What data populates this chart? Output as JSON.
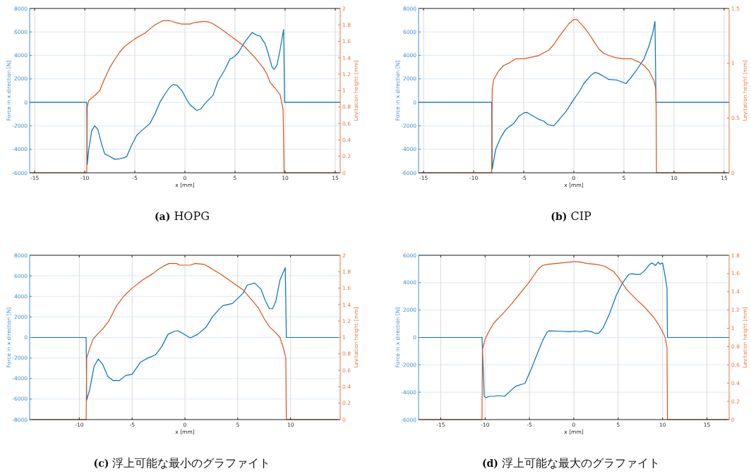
{
  "chart_data": [
    {
      "type": "line",
      "title": "(a) HOPG",
      "xlabel": "x [mm]",
      "ylabel": "Force in x direction [N]",
      "y2label": "Levitation height [mm]",
      "xlim": [
        -15.5,
        15.5
      ],
      "xticks": [
        -15,
        -10,
        -5,
        0,
        5,
        10,
        15
      ],
      "ylim": [
        -6000,
        8000
      ],
      "yticks": [
        -6000,
        -4000,
        -2000,
        0,
        2000,
        4000,
        6000,
        8000
      ],
      "y2lim": [
        0,
        2
      ],
      "y2ticks": [
        0,
        0.2,
        0.4,
        0.6,
        0.8,
        1,
        1.2,
        1.4,
        1.6,
        1.8,
        2
      ],
      "grid": true,
      "series": [
        {
          "color": "#0072bd",
          "x": [
            -15.5,
            -9.8,
            -9.75,
            -9.6,
            -9.3,
            -9.0,
            -8.7,
            -8.3,
            -8.0,
            -7.5,
            -7.0,
            -6.5,
            -6.0,
            -5.8,
            -5.3,
            -4.8,
            -4.3,
            -3.5,
            -3.0,
            -2.5,
            -2.0,
            -1.5,
            -1.2,
            -0.8,
            -0.3,
            0.2,
            0.5,
            1.2,
            1.6,
            2.0,
            2.8,
            3.3,
            4.0,
            4.5,
            4.8,
            5.3,
            5.8,
            6.2,
            6.7,
            7.2,
            7.5,
            8.0,
            8.3,
            8.7,
            8.9,
            9.2,
            9.5,
            9.85,
            9.95,
            15.5
          ],
          "values": [
            0,
            0,
            -5300,
            -4000,
            -2400,
            -2000,
            -2300,
            -3600,
            -4400,
            -4600,
            -4850,
            -4800,
            -4700,
            -4600,
            -3600,
            -2800,
            -2400,
            -1800,
            -1000,
            0,
            700,
            1300,
            1520,
            1450,
            1000,
            200,
            -200,
            -700,
            -550,
            -100,
            600,
            1800,
            2800,
            3700,
            3800,
            4200,
            4900,
            5400,
            5950,
            5700,
            5650,
            5000,
            4200,
            3000,
            2800,
            3200,
            4500,
            6200,
            0,
            0
          ]
        },
        {
          "color": "#d95319",
          "axis": "y2",
          "x": [
            -15.5,
            -9.8,
            -9.75,
            -9.6,
            -9.0,
            -8.5,
            -8.0,
            -7.5,
            -7.0,
            -6.5,
            -6.0,
            -5.0,
            -4.0,
            -3.5,
            -3.0,
            -2.2,
            -1.5,
            -1.0,
            -0.3,
            0.5,
            1.0,
            1.7,
            2.2,
            2.7,
            3.5,
            4.5,
            5.5,
            6.0,
            7.0,
            7.8,
            8.2,
            8.5,
            9.0,
            9.5,
            9.8,
            9.9,
            15.5
          ],
          "values": [
            0,
            0,
            0.8,
            0.88,
            0.94,
            1.0,
            1.15,
            1.28,
            1.38,
            1.47,
            1.54,
            1.63,
            1.7,
            1.75,
            1.8,
            1.85,
            1.85,
            1.83,
            1.81,
            1.81,
            1.83,
            1.84,
            1.84,
            1.82,
            1.76,
            1.67,
            1.58,
            1.53,
            1.4,
            1.28,
            1.2,
            1.1,
            1.03,
            0.95,
            0.77,
            0,
            0
          ]
        }
      ]
    },
    {
      "type": "line",
      "title": "(b) CIP",
      "xlabel": "x [mm]",
      "ylabel": "Force in x direction [N]",
      "y2label": "Levitation height [mm]",
      "xlim": [
        -15.5,
        15.5
      ],
      "xticks": [
        -15,
        -10,
        -5,
        0,
        5,
        10,
        15
      ],
      "ylim": [
        -6000,
        8000
      ],
      "yticks": [
        -6000,
        -4000,
        -2000,
        0,
        2000,
        4000,
        6000,
        8000
      ],
      "y2lim": [
        0,
        1.5
      ],
      "y2ticks": [
        0,
        0.5,
        1,
        1.5
      ],
      "grid": true,
      "series": [
        {
          "color": "#0072bd",
          "x": [
            -15.5,
            -8.2,
            -8.15,
            -7.8,
            -7.3,
            -6.8,
            -6.0,
            -5.5,
            -5.0,
            -4.7,
            -4.2,
            -3.5,
            -3.0,
            -2.6,
            -2.0,
            -1.5,
            -0.8,
            -0.2,
            0.6,
            1.0,
            1.7,
            2.1,
            2.5,
            3.0,
            3.5,
            4.3,
            5.2,
            5.7,
            6.3,
            7.0,
            7.5,
            7.9,
            8.1,
            8.2,
            15.5
          ],
          "values": [
            0,
            0,
            -5700,
            -4000,
            -3000,
            -2300,
            -1800,
            -1200,
            -900,
            -850,
            -1100,
            -1450,
            -1600,
            -1900,
            -2000,
            -1500,
            -800,
            0,
            1000,
            1600,
            2300,
            2550,
            2450,
            2200,
            1950,
            1900,
            1600,
            2100,
            2800,
            3700,
            4800,
            6000,
            6900,
            0,
            0
          ]
        },
        {
          "color": "#d95319",
          "axis": "y2",
          "x": [
            -15.5,
            -8.2,
            -8.15,
            -8.0,
            -7.5,
            -7.0,
            -6.5,
            -6.0,
            -5.8,
            -5.0,
            -4.5,
            -3.5,
            -2.5,
            -2.0,
            -1.5,
            -1.0,
            -0.5,
            0,
            0.3,
            1.0,
            1.5,
            2.0,
            2.5,
            3.0,
            3.5,
            4.2,
            5.0,
            5.8,
            6.5,
            7.0,
            7.5,
            8.0,
            8.2,
            8.25,
            15.5
          ],
          "values": [
            0,
            0,
            0.76,
            0.85,
            0.93,
            0.98,
            1.0,
            1.03,
            1.04,
            1.04,
            1.05,
            1.07,
            1.12,
            1.17,
            1.24,
            1.3,
            1.36,
            1.4,
            1.4,
            1.33,
            1.27,
            1.2,
            1.13,
            1.09,
            1.07,
            1.05,
            1.04,
            1.04,
            1.01,
            0.98,
            0.93,
            0.84,
            0.76,
            0,
            0
          ]
        }
      ]
    },
    {
      "type": "line",
      "title": "(c) 浮上可能な最小のグラファイト",
      "xlabel": "x [mm]",
      "ylabel": "Force in x direction [N]",
      "y2label": "Levitation height [mm]",
      "xlim": [
        -14.7,
        14.7
      ],
      "xticks": [
        -10,
        -5,
        0,
        5,
        10
      ],
      "ylim": [
        -8000,
        8000
      ],
      "yticks": [
        -8000,
        -6000,
        -4000,
        -2000,
        0,
        2000,
        4000,
        6000,
        8000
      ],
      "y2lim": [
        0,
        2
      ],
      "y2ticks": [
        0,
        0.2,
        0.4,
        0.6,
        0.8,
        1,
        1.2,
        1.4,
        1.6,
        1.8,
        2
      ],
      "grid": true,
      "series": [
        {
          "color": "#0072bd",
          "x": [
            -14.7,
            -9.35,
            -9.3,
            -9.0,
            -8.6,
            -8.2,
            -7.8,
            -7.3,
            -6.8,
            -6.2,
            -5.6,
            -5.0,
            -4.2,
            -3.5,
            -2.8,
            -2.2,
            -1.6,
            -1.0,
            -0.7,
            -0.2,
            0.5,
            1.2,
            2.0,
            2.6,
            3.2,
            3.6,
            4.5,
            5.0,
            5.5,
            5.9,
            6.6,
            7.2,
            7.6,
            8.0,
            8.3,
            8.6,
            9.0,
            9.5,
            9.6,
            14.7
          ],
          "values": [
            0,
            0,
            -6100,
            -5000,
            -2800,
            -2100,
            -2600,
            -3800,
            -4200,
            -4200,
            -3700,
            -3600,
            -2400,
            -2000,
            -1700,
            -900,
            300,
            600,
            650,
            400,
            -50,
            300,
            1000,
            2000,
            2700,
            3100,
            3300,
            3800,
            4300,
            5100,
            5300,
            4700,
            3600,
            2800,
            2800,
            3500,
            5600,
            6800,
            0,
            0
          ]
        },
        {
          "color": "#d95319",
          "axis": "y2",
          "x": [
            -14.7,
            -9.35,
            -9.3,
            -9.0,
            -8.7,
            -8.2,
            -7.8,
            -7.2,
            -6.5,
            -5.8,
            -5.0,
            -4.0,
            -3.0,
            -2.5,
            -2.0,
            -1.5,
            -0.8,
            -0.5,
            0.5,
            1.0,
            1.8,
            2.5,
            3.5,
            4.5,
            5.5,
            6.5,
            7.0,
            7.5,
            8.0,
            8.5,
            9.0,
            9.3,
            9.55,
            9.6,
            14.7
          ],
          "values": [
            0,
            0,
            0.75,
            0.87,
            0.98,
            1.05,
            1.1,
            1.2,
            1.38,
            1.5,
            1.6,
            1.7,
            1.78,
            1.83,
            1.87,
            1.9,
            1.9,
            1.88,
            1.88,
            1.9,
            1.89,
            1.84,
            1.76,
            1.67,
            1.58,
            1.43,
            1.35,
            1.23,
            1.13,
            1.07,
            1.0,
            0.88,
            0.75,
            0,
            0
          ]
        }
      ]
    },
    {
      "type": "line",
      "title": "(d) 浮上可能な最大のグラファイト",
      "xlabel": "x [mm]",
      "ylabel": "Force in x direction [N]",
      "y2label": "Levitation height [mm]",
      "xlim": [
        -17.5,
        17.5
      ],
      "xticks": [
        -15,
        -10,
        -5,
        0,
        5,
        10,
        15
      ],
      "ylim": [
        -6000,
        6000
      ],
      "yticks": [
        -6000,
        -4000,
        -2000,
        0,
        2000,
        4000,
        6000
      ],
      "y2lim": [
        0,
        1.8
      ],
      "y2ticks": [
        0,
        0.2,
        0.4,
        0.6,
        0.8,
        1,
        1.2,
        1.4,
        1.6,
        1.8
      ],
      "grid": true,
      "series": [
        {
          "color": "#0072bd",
          "x": [
            -17.5,
            -10.35,
            -10.1,
            -9.9,
            -9.5,
            -9.0,
            -8.5,
            -7.8,
            -7.3,
            -6.8,
            -6.5,
            -5.5,
            -4.8,
            -4.0,
            -3.5,
            -3.0,
            -2.8,
            -1.5,
            -0.5,
            0.2,
            0.7,
            1.3,
            2.0,
            2.4,
            2.8,
            3.3,
            4.0,
            4.8,
            5.5,
            6.2,
            6.5,
            7.0,
            7.5,
            8.0,
            8.5,
            8.8,
            9.2,
            9.5,
            9.7,
            10.0,
            10.2,
            10.5,
            10.55,
            17.5
          ],
          "values": [
            0,
            0,
            -4300,
            -4400,
            -4300,
            -4300,
            -4250,
            -4300,
            -4000,
            -3700,
            -3550,
            -3350,
            -2300,
            -1000,
            -200,
            400,
            480,
            450,
            420,
            450,
            400,
            480,
            420,
            300,
            300,
            700,
            1700,
            3100,
            4000,
            4600,
            4650,
            4600,
            4600,
            4900,
            5300,
            5450,
            5250,
            5500,
            5350,
            5450,
            4800,
            3600,
            0,
            0
          ]
        },
        {
          "color": "#d95319",
          "axis": "y2",
          "x": [
            -17.5,
            -10.35,
            -10.3,
            -10.0,
            -9.5,
            -9.0,
            -8.0,
            -7.0,
            -6.0,
            -5.0,
            -4.5,
            -4.0,
            -3.5,
            -3.0,
            -2.0,
            -1.0,
            0,
            0.5,
            1.5,
            2.5,
            3.5,
            4.0,
            4.5,
            5.0,
            5.5,
            6.0,
            7.0,
            8.0,
            9.0,
            9.5,
            10.0,
            10.3,
            10.5,
            10.55,
            17.5
          ],
          "values": [
            0,
            0,
            0.77,
            0.88,
            0.98,
            1.06,
            1.16,
            1.27,
            1.39,
            1.51,
            1.58,
            1.65,
            1.69,
            1.7,
            1.71,
            1.72,
            1.73,
            1.73,
            1.71,
            1.7,
            1.68,
            1.65,
            1.62,
            1.56,
            1.49,
            1.42,
            1.32,
            1.23,
            1.12,
            1.05,
            0.96,
            0.9,
            0.79,
            0,
            0
          ]
        }
      ]
    }
  ]
}
